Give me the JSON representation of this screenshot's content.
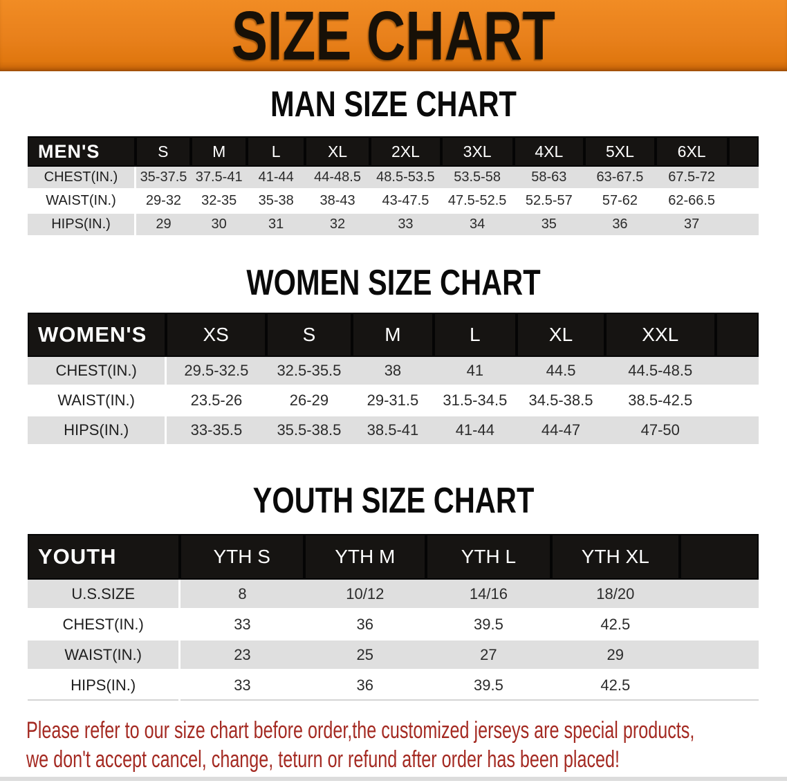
{
  "banner": {
    "title": "SIZE CHART"
  },
  "sections": [
    {
      "heading": "MAN SIZE CHART",
      "corner_label": "MEN'S",
      "columns": [
        "S",
        "M",
        "L",
        "XL",
        "2XL",
        "3XL",
        "4XL",
        "5XL",
        "6XL"
      ],
      "rows": [
        {
          "label": "CHEST(IN.)",
          "values": [
            "35-37.5",
            "37.5-41",
            "41-44",
            "44-48.5",
            "48.5-53.5",
            "53.5-58",
            "58-63",
            "63-67.5",
            "67.5-72"
          ]
        },
        {
          "label": "WAIST(IN.)",
          "values": [
            "29-32",
            "32-35",
            "35-38",
            "38-43",
            "43-47.5",
            "47.5-52.5",
            "52.5-57",
            "57-62",
            "62-66.5"
          ]
        },
        {
          "label": "HIPS(IN.)",
          "values": [
            "29",
            "30",
            "31",
            "32",
            "33",
            "34",
            "35",
            "36",
            "37"
          ]
        }
      ]
    },
    {
      "heading": "WOMEN SIZE CHART",
      "corner_label": "WOMEN'S",
      "columns": [
        "XS",
        "S",
        "M",
        "L",
        "XL",
        "XXL"
      ],
      "rows": [
        {
          "label": "CHEST(IN.)",
          "values": [
            "29.5-32.5",
            "32.5-35.5",
            "38",
            "41",
            "44.5",
            "44.5-48.5"
          ]
        },
        {
          "label": "WAIST(IN.)",
          "values": [
            "23.5-26",
            "26-29",
            "29-31.5",
            "31.5-34.5",
            "34.5-38.5",
            "38.5-42.5"
          ]
        },
        {
          "label": "HIPS(IN.)",
          "values": [
            "33-35.5",
            "35.5-38.5",
            "38.5-41",
            "41-44",
            "44-47",
            "47-50"
          ]
        }
      ]
    },
    {
      "heading": "YOUTH SIZE CHART",
      "corner_label": "YOUTH",
      "columns": [
        "YTH S",
        "YTH M",
        "YTH L",
        "YTH XL"
      ],
      "rows": [
        {
          "label": "U.S.SIZE",
          "values": [
            "8",
            "10/12",
            "14/16",
            "18/20"
          ]
        },
        {
          "label": "CHEST(IN.)",
          "values": [
            "33",
            "36",
            "39.5",
            "42.5"
          ]
        },
        {
          "label": "WAIST(IN.)",
          "values": [
            "23",
            "25",
            "27",
            "29"
          ]
        },
        {
          "label": "HIPS(IN.)",
          "values": [
            "33",
            "36",
            "39.5",
            "42.5"
          ]
        }
      ]
    }
  ],
  "disclaimer": {
    "line1": "Please refer to our size chart before order,the customized jerseys are special products,",
    "line2": "we don't accept cancel, change, teturn or refund after order has been placed!"
  },
  "colors": {
    "banner_bg": "#E8801B",
    "banner_text": "#171007",
    "heading_text": "#0A0A0A",
    "table_header_bg": "#161412",
    "table_header_text": "#FFFFFF",
    "row_stripe": "#DFDFDF",
    "row_white": "#FFFFFF",
    "disclaimer_text": "#A42A22"
  }
}
